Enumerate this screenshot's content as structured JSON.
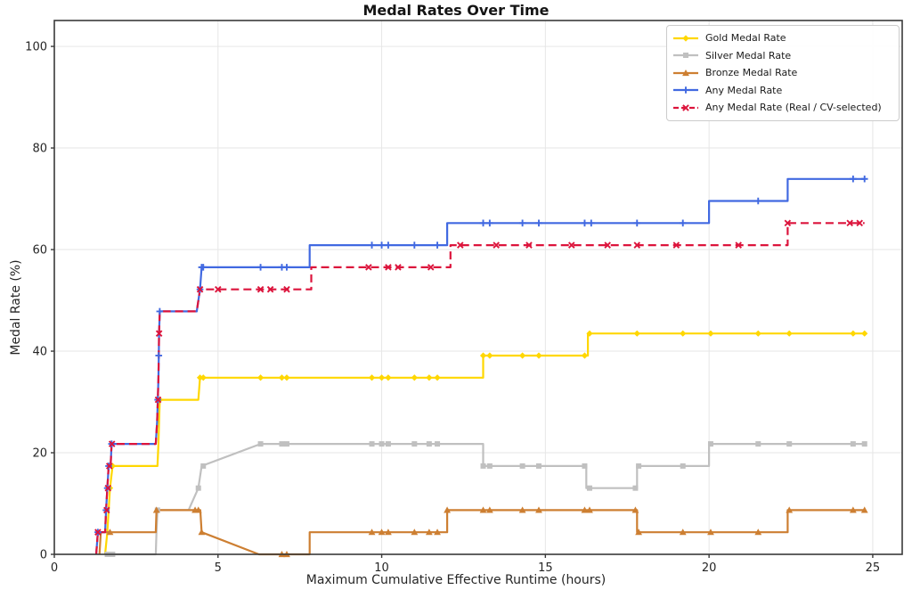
{
  "chart_data": {
    "type": "line",
    "title": "Medal Rates Over Time",
    "xlabel": "Maximum Cumulative Effective Runtime (hours)",
    "ylabel": "Medal Rate (%)",
    "xlim": [
      0,
      25.9
    ],
    "ylim": [
      0,
      105.1
    ],
    "xticks": [
      0,
      5,
      10,
      15,
      20,
      25
    ],
    "yticks": [
      0,
      20,
      40,
      60,
      80,
      100
    ],
    "grid": true,
    "grid_color": "#e6e6e6",
    "spine_color": "#3a3a3a",
    "legend_position": "top-right",
    "series": [
      {
        "name": "Gold Medal Rate",
        "color": "#FFD700",
        "dash": "solid",
        "marker": "diamond",
        "line": [
          [
            1.55,
            0
          ],
          [
            1.62,
            4.35
          ],
          [
            1.66,
            8.7
          ],
          [
            1.7,
            13.04
          ],
          [
            1.78,
            17.39
          ],
          [
            3.15,
            17.39
          ],
          [
            3.18,
            21.74
          ],
          [
            3.2,
            26.09
          ],
          [
            3.22,
            30.43
          ],
          [
            4.4,
            30.43
          ],
          [
            4.45,
            34.78
          ],
          [
            13.1,
            34.78
          ],
          [
            13.1,
            39.13
          ],
          [
            16.3,
            39.13
          ],
          [
            16.3,
            43.48
          ],
          [
            24.75,
            43.48
          ]
        ],
        "markers": [
          [
            1.7,
            13.04
          ],
          [
            1.78,
            17.39
          ],
          [
            3.22,
            30.43
          ],
          [
            4.45,
            34.78
          ],
          [
            4.55,
            34.78
          ],
          [
            6.3,
            34.78
          ],
          [
            6.95,
            34.78
          ],
          [
            7.1,
            34.78
          ],
          [
            9.7,
            34.78
          ],
          [
            10.0,
            34.78
          ],
          [
            10.2,
            34.78
          ],
          [
            11.0,
            34.78
          ],
          [
            11.45,
            34.78
          ],
          [
            11.7,
            34.78
          ],
          [
            13.1,
            39.13
          ],
          [
            13.3,
            39.13
          ],
          [
            14.3,
            39.13
          ],
          [
            14.8,
            39.13
          ],
          [
            16.2,
            39.13
          ],
          [
            16.35,
            43.48
          ],
          [
            17.8,
            43.48
          ],
          [
            19.2,
            43.48
          ],
          [
            20.05,
            43.48
          ],
          [
            21.5,
            43.48
          ],
          [
            22.45,
            43.48
          ],
          [
            24.4,
            43.48
          ],
          [
            24.75,
            43.48
          ]
        ]
      },
      {
        "name": "Silver Medal Rate",
        "color": "#C0C0C0",
        "dash": "solid",
        "marker": "square",
        "line": [
          [
            1.55,
            0
          ],
          [
            3.1,
            0
          ],
          [
            3.12,
            4.35
          ],
          [
            3.15,
            8.7
          ],
          [
            4.1,
            8.7
          ],
          [
            4.4,
            13.04
          ],
          [
            4.5,
            17.39
          ],
          [
            6.3,
            21.74
          ],
          [
            13.1,
            21.74
          ],
          [
            13.1,
            17.39
          ],
          [
            16.25,
            17.39
          ],
          [
            16.25,
            13.04
          ],
          [
            17.8,
            13.04
          ],
          [
            17.8,
            17.39
          ],
          [
            20.0,
            17.39
          ],
          [
            20.0,
            21.74
          ],
          [
            24.75,
            21.74
          ]
        ],
        "markers": [
          [
            1.62,
            0
          ],
          [
            1.7,
            0
          ],
          [
            1.78,
            0
          ],
          [
            3.15,
            8.7
          ],
          [
            4.4,
            13.04
          ],
          [
            4.55,
            17.39
          ],
          [
            6.3,
            21.74
          ],
          [
            6.95,
            21.74
          ],
          [
            7.1,
            21.74
          ],
          [
            9.7,
            21.74
          ],
          [
            10.0,
            21.74
          ],
          [
            10.2,
            21.74
          ],
          [
            11.0,
            21.74
          ],
          [
            11.45,
            21.74
          ],
          [
            11.7,
            21.74
          ],
          [
            13.1,
            17.39
          ],
          [
            13.3,
            17.39
          ],
          [
            14.3,
            17.39
          ],
          [
            14.8,
            17.39
          ],
          [
            16.2,
            17.39
          ],
          [
            16.35,
            13.04
          ],
          [
            17.75,
            13.04
          ],
          [
            17.85,
            17.39
          ],
          [
            19.2,
            17.39
          ],
          [
            20.05,
            21.74
          ],
          [
            21.5,
            21.74
          ],
          [
            22.45,
            21.74
          ],
          [
            24.4,
            21.74
          ],
          [
            24.75,
            21.74
          ]
        ]
      },
      {
        "name": "Bronze Medal Rate",
        "color": "#CD7F32",
        "dash": "solid",
        "marker": "triangle",
        "line": [
          [
            1.38,
            0
          ],
          [
            1.42,
            4.35
          ],
          [
            3.1,
            4.35
          ],
          [
            3.12,
            8.7
          ],
          [
            4.46,
            8.7
          ],
          [
            4.5,
            4.35
          ],
          [
            6.25,
            0
          ],
          [
            7.8,
            0
          ],
          [
            7.8,
            4.35
          ],
          [
            12.0,
            4.35
          ],
          [
            12.0,
            8.7
          ],
          [
            17.8,
            8.7
          ],
          [
            17.8,
            4.35
          ],
          [
            22.4,
            4.35
          ],
          [
            22.4,
            8.7
          ],
          [
            24.75,
            8.7
          ]
        ],
        "markers": [
          [
            1.7,
            4.35
          ],
          [
            3.12,
            8.7
          ],
          [
            4.3,
            8.7
          ],
          [
            4.4,
            8.7
          ],
          [
            4.5,
            4.35
          ],
          [
            6.95,
            0
          ],
          [
            7.1,
            0
          ],
          [
            9.7,
            4.35
          ],
          [
            10.0,
            4.35
          ],
          [
            10.2,
            4.35
          ],
          [
            11.0,
            4.35
          ],
          [
            11.45,
            4.35
          ],
          [
            11.7,
            4.35
          ],
          [
            12.0,
            8.7
          ],
          [
            13.1,
            8.7
          ],
          [
            13.3,
            8.7
          ],
          [
            14.3,
            8.7
          ],
          [
            14.8,
            8.7
          ],
          [
            16.2,
            8.7
          ],
          [
            16.35,
            8.7
          ],
          [
            17.75,
            8.7
          ],
          [
            17.85,
            4.35
          ],
          [
            19.2,
            4.35
          ],
          [
            20.05,
            4.35
          ],
          [
            21.5,
            4.35
          ],
          [
            22.45,
            8.7
          ],
          [
            24.4,
            8.7
          ],
          [
            24.75,
            8.7
          ]
        ]
      },
      {
        "name": "Any Medal Rate",
        "color": "#4169E1",
        "dash": "solid",
        "marker": "plus",
        "line": [
          [
            1.28,
            0
          ],
          [
            1.33,
            4.35
          ],
          [
            1.55,
            4.35
          ],
          [
            1.58,
            8.7
          ],
          [
            1.62,
            13.04
          ],
          [
            1.66,
            17.39
          ],
          [
            1.72,
            17.39
          ],
          [
            1.75,
            21.74
          ],
          [
            3.1,
            21.74
          ],
          [
            3.14,
            26.09
          ],
          [
            3.16,
            30.43
          ],
          [
            3.18,
            34.78
          ],
          [
            3.19,
            39.13
          ],
          [
            3.2,
            43.48
          ],
          [
            3.22,
            47.83
          ],
          [
            4.35,
            47.83
          ],
          [
            4.45,
            52.17
          ],
          [
            4.5,
            56.52
          ],
          [
            7.8,
            56.52
          ],
          [
            7.8,
            60.87
          ],
          [
            12.0,
            60.87
          ],
          [
            12.0,
            65.22
          ],
          [
            20.0,
            65.22
          ],
          [
            20.0,
            69.57
          ],
          [
            22.4,
            69.57
          ],
          [
            22.4,
            73.91
          ],
          [
            24.75,
            73.91
          ]
        ],
        "markers": [
          [
            1.33,
            4.35
          ],
          [
            1.58,
            8.7
          ],
          [
            1.62,
            13.04
          ],
          [
            1.66,
            17.39
          ],
          [
            1.75,
            21.74
          ],
          [
            3.16,
            30.43
          ],
          [
            3.19,
            39.13
          ],
          [
            3.22,
            47.83
          ],
          [
            4.45,
            52.17
          ],
          [
            4.5,
            56.52
          ],
          [
            4.55,
            56.52
          ],
          [
            6.3,
            56.52
          ],
          [
            6.95,
            56.52
          ],
          [
            7.1,
            56.52
          ],
          [
            9.7,
            60.87
          ],
          [
            10.0,
            60.87
          ],
          [
            10.2,
            60.87
          ],
          [
            11.0,
            60.87
          ],
          [
            11.7,
            60.87
          ],
          [
            13.1,
            65.22
          ],
          [
            13.3,
            65.22
          ],
          [
            14.3,
            65.22
          ],
          [
            14.8,
            65.22
          ],
          [
            16.2,
            65.22
          ],
          [
            16.4,
            65.22
          ],
          [
            17.8,
            65.22
          ],
          [
            19.2,
            65.22
          ],
          [
            21.5,
            69.57
          ],
          [
            24.4,
            73.91
          ],
          [
            24.75,
            73.91
          ]
        ]
      },
      {
        "name": "Any Medal Rate (Real / CV-selected)",
        "color": "#DC143C",
        "dash": "dashed",
        "marker": "x",
        "line": [
          [
            1.28,
            0
          ],
          [
            1.33,
            4.35
          ],
          [
            1.55,
            4.35
          ],
          [
            1.58,
            8.7
          ],
          [
            1.62,
            13.04
          ],
          [
            1.66,
            17.39
          ],
          [
            1.72,
            17.39
          ],
          [
            1.75,
            21.74
          ],
          [
            3.1,
            21.74
          ],
          [
            3.14,
            26.09
          ],
          [
            3.16,
            30.43
          ],
          [
            3.18,
            34.78
          ],
          [
            3.19,
            39.13
          ],
          [
            3.2,
            43.48
          ],
          [
            3.22,
            47.83
          ],
          [
            4.35,
            47.83
          ],
          [
            4.45,
            52.17
          ],
          [
            7.85,
            52.17
          ],
          [
            7.85,
            56.52
          ],
          [
            12.1,
            56.52
          ],
          [
            12.1,
            60.87
          ],
          [
            22.4,
            60.87
          ],
          [
            22.4,
            65.22
          ],
          [
            24.75,
            65.22
          ]
        ],
        "markers": [
          [
            1.33,
            4.35
          ],
          [
            1.6,
            8.7
          ],
          [
            1.64,
            13.04
          ],
          [
            1.68,
            17.39
          ],
          [
            1.76,
            21.74
          ],
          [
            3.17,
            30.43
          ],
          [
            3.2,
            43.48
          ],
          [
            4.45,
            52.17
          ],
          [
            5.0,
            52.17
          ],
          [
            6.3,
            52.17
          ],
          [
            6.6,
            52.17
          ],
          [
            7.1,
            52.17
          ],
          [
            9.6,
            56.52
          ],
          [
            10.2,
            56.52
          ],
          [
            10.5,
            56.52
          ],
          [
            11.5,
            56.52
          ],
          [
            12.4,
            60.87
          ],
          [
            13.5,
            60.87
          ],
          [
            14.5,
            60.87
          ],
          [
            15.8,
            60.87
          ],
          [
            16.9,
            60.87
          ],
          [
            17.8,
            60.87
          ],
          [
            19.0,
            60.87
          ],
          [
            20.9,
            60.87
          ],
          [
            22.4,
            65.22
          ],
          [
            24.3,
            65.22
          ],
          [
            24.6,
            65.22
          ]
        ]
      }
    ]
  }
}
